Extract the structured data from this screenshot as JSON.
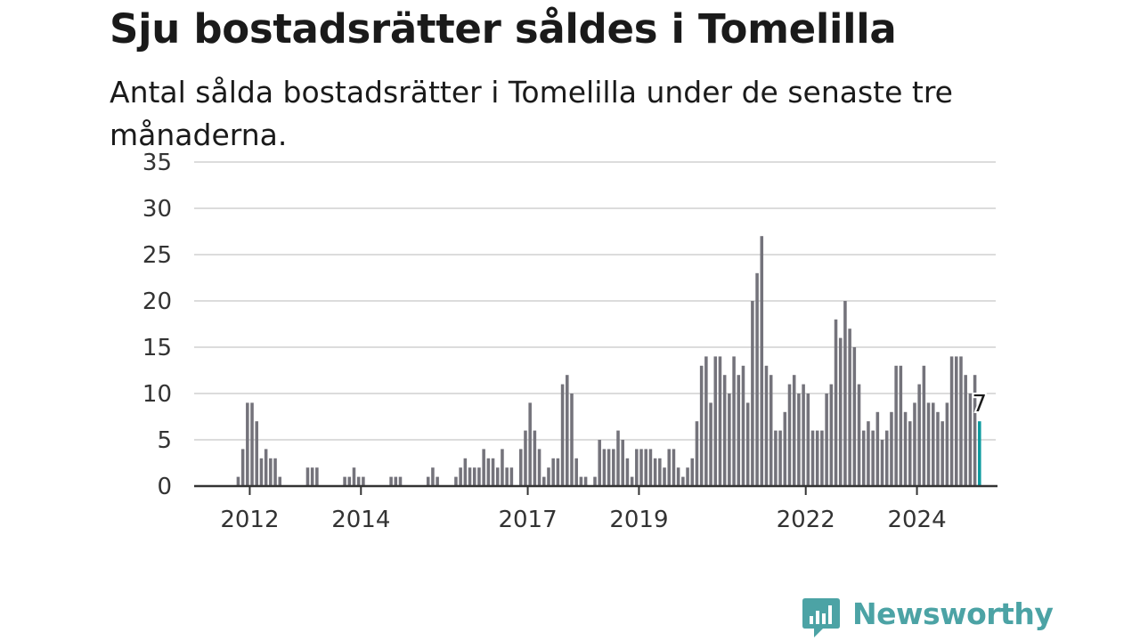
{
  "header": {
    "title": "Sju bostadsrätter såldes i Tomelilla",
    "subtitle": "Antal sålda bostadsrätter i Tomelilla under de senaste tre månaderna."
  },
  "brand": {
    "name": "Newsworthy",
    "color": "#4ca3a5",
    "icon": "newsworthy-chart-icon"
  },
  "colors": {
    "bar": "#74737b",
    "highlight": "#0c9b9f",
    "grid": "#dcdcdc",
    "axis": "#333333"
  },
  "chart_data": {
    "type": "bar",
    "title": "Sju bostadsrätter såldes i Tomelilla",
    "subtitle": "Antal sålda bostadsrätter i Tomelilla under de senaste tre månaderna.",
    "xlabel": "",
    "ylabel": "",
    "ylim": [
      0,
      35
    ],
    "yticks": [
      0,
      5,
      10,
      15,
      20,
      25,
      30,
      35
    ],
    "grid": true,
    "legend": "none",
    "x_start": "2011-01",
    "x_end": "2025-06",
    "x_tick_labels": [
      {
        "date": "2012-01",
        "label": "2012"
      },
      {
        "date": "2014-01",
        "label": "2014"
      },
      {
        "date": "2017-01",
        "label": "2017"
      },
      {
        "date": "2019-01",
        "label": "2019"
      },
      {
        "date": "2022-01",
        "label": "2022"
      },
      {
        "date": "2024-01",
        "label": "2024"
      }
    ],
    "start_month": "2011-10",
    "values": [
      1,
      4,
      9,
      9,
      7,
      3,
      4,
      3,
      3,
      1,
      0,
      0,
      0,
      0,
      0,
      2,
      2,
      2,
      0,
      0,
      0,
      0,
      0,
      1,
      1,
      2,
      1,
      1,
      0,
      0,
      0,
      0,
      0,
      1,
      1,
      1,
      0,
      0,
      0,
      0,
      0,
      1,
      2,
      1,
      0,
      0,
      0,
      1,
      2,
      3,
      2,
      2,
      2,
      4,
      3,
      3,
      2,
      4,
      2,
      2,
      0,
      4,
      6,
      9,
      6,
      4,
      1,
      2,
      3,
      3,
      11,
      12,
      10,
      3,
      1,
      1,
      0,
      1,
      5,
      4,
      4,
      4,
      6,
      5,
      3,
      1,
      4,
      4,
      4,
      4,
      3,
      3,
      2,
      4,
      4,
      2,
      1,
      2,
      3,
      7,
      13,
      14,
      9,
      14,
      14,
      12,
      10,
      14,
      12,
      13,
      9,
      20,
      23,
      27,
      13,
      12,
      6,
      6,
      8,
      11,
      12,
      10,
      11,
      10,
      6,
      6,
      6,
      10,
      11,
      18,
      16,
      20,
      17,
      15,
      11,
      6,
      7,
      6,
      8,
      5,
      6,
      8,
      13,
      13,
      8,
      7,
      9,
      11,
      13,
      9,
      9,
      8,
      7,
      9,
      14,
      14,
      14,
      12,
      10,
      12,
      7
    ],
    "highlight_last": true,
    "highlight_label": "7"
  }
}
